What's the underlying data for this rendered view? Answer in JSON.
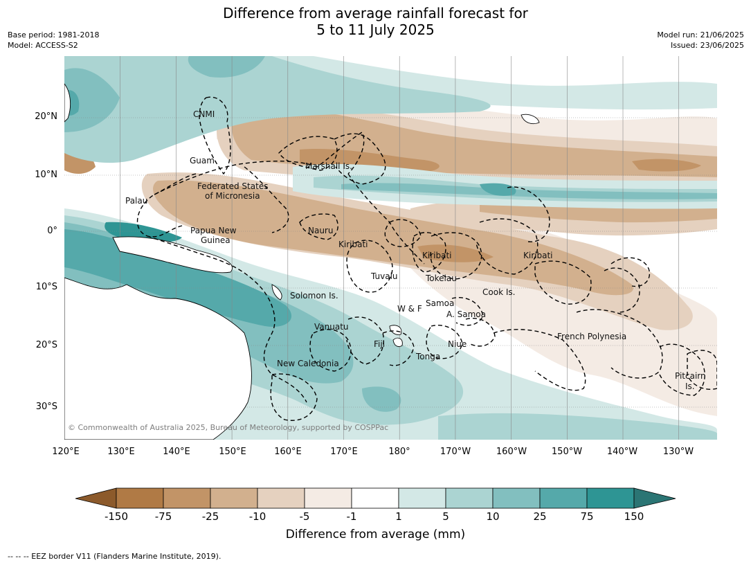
{
  "title_line1": "Difference from average rainfall forecast for",
  "title_line2": "5 to 11 July 2025",
  "base_period": "Base period: 1981-2018",
  "model": "Model: ACCESS-S2",
  "model_run": "Model run: 21/06/2025",
  "issued": "Issued: 23/06/2025",
  "copyright": "© Commonwealth of Australia 2025, Bureau of Meteorology, supported by COSPPac",
  "lat_labels": [
    "20°N",
    "10°N",
    "0°",
    "10°S",
    "20°S",
    "30°S"
  ],
  "lon_labels": [
    "120°E",
    "130°E",
    "140°E",
    "150°E",
    "160°E",
    "170°E",
    "180°",
    "170°W",
    "160°W",
    "150°W",
    "140°W",
    "130°W"
  ],
  "places": {
    "cnmi": "CNMI",
    "guam": "Guam",
    "marshall": "Marshall Is.",
    "fsm1": "Federated States",
    "fsm2": "of Micronesia",
    "palau": "Palau",
    "png1": "Papua New",
    "png2": "Guinea",
    "nauru": "Nauru",
    "kiribati_w": "Kiribati",
    "kiribati_c": "Kiribati",
    "kiribati_e": "Kiribati",
    "tuvalu": "Tuvalu",
    "tokelau": "Tokelau",
    "cook": "Cook Is.",
    "solomon": "Solomon Is.",
    "wf": "W & F",
    "samoa": "Samoa",
    "asamoa": "A. Samoa",
    "vanuatu": "Vanuatu",
    "fiji": "Fiji",
    "niue": "Niue",
    "tonga": "Tonga",
    "frpoly": "French Polynesia",
    "newcal": "New Caledonia",
    "pitcairn1": "Pitcairn",
    "pitcairn2": "Is."
  },
  "colorbar": {
    "title": "Difference from average (mm)",
    "labels": [
      "-150",
      "-75",
      "-25",
      "-10",
      "-5",
      "-1",
      "1",
      "5",
      "10",
      "25",
      "75",
      "150"
    ],
    "colors": {
      "extend_low": "#8c5a2b",
      "b1": "#b07a45",
      "b2": "#c29467",
      "b3": "#d2b08e",
      "b4": "#e5d1bf",
      "b5": "#f4ebe4",
      "b6": "#ffffff",
      "b7": "#d3e8e6",
      "b8": "#abd4d2",
      "b9": "#82bfbf",
      "b10": "#55a9aa",
      "b11": "#2e9594",
      "extend_high": "#2b7574"
    }
  },
  "footnote": "--  --  -- EEZ border V11 (Flanders Marine Institute, 2019)."
}
